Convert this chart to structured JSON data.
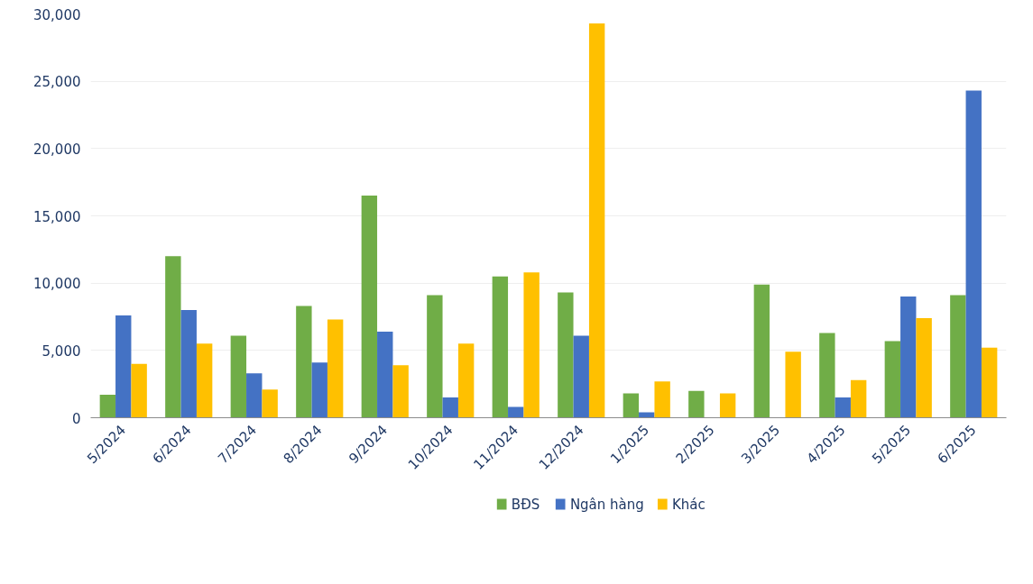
{
  "chart_data": {
    "type": "bar",
    "categories": [
      "5/2024",
      "6/2024",
      "7/2024",
      "8/2024",
      "9/2024",
      "10/2024",
      "11/2024",
      "12/2024",
      "1/2025",
      "2/2025",
      "3/2025",
      "4/2025",
      "5/2025",
      "6/2025"
    ],
    "series": [
      {
        "name": "BĐS",
        "color": "#70ad47",
        "values": [
          1700,
          12000,
          6100,
          8300,
          16500,
          9100,
          10500,
          9300,
          1800,
          2000,
          9900,
          6300,
          5700,
          9100
        ]
      },
      {
        "name": "Ngân hàng",
        "color": "#4472c4",
        "values": [
          7600,
          8000,
          3300,
          4100,
          6400,
          1500,
          800,
          6100,
          400,
          null,
          null,
          1500,
          9000,
          24300
        ]
      },
      {
        "name": "Khác",
        "color": "#ffc000",
        "values": [
          4000,
          5500,
          2100,
          7300,
          3900,
          5500,
          10800,
          29300,
          2700,
          1800,
          4900,
          2800,
          7400,
          5200
        ]
      }
    ],
    "ylim": [
      0,
      30000
    ],
    "yticks": [
      {
        "value": 0,
        "label": "0"
      },
      {
        "value": 5000,
        "label": "5,000"
      },
      {
        "value": 10000,
        "label": "10,000"
      },
      {
        "value": 15000,
        "label": "15,000"
      },
      {
        "value": 20000,
        "label": "20,000"
      },
      {
        "value": 25000,
        "label": "25,000"
      },
      {
        "value": 30000,
        "label": "30,000"
      }
    ],
    "grid": "y",
    "legend": "bottom"
  }
}
